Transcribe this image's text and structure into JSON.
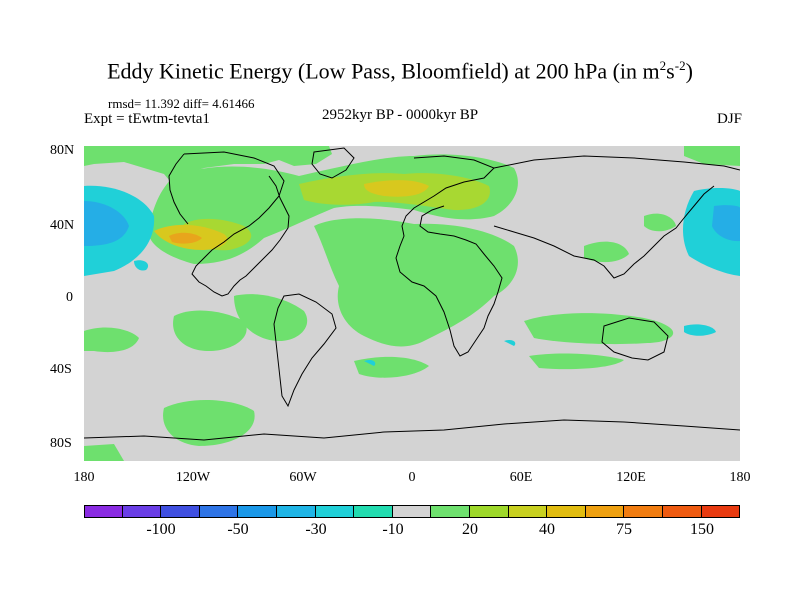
{
  "title": "Eddy Kinetic Energy (Low Pass, Bloomfield) at 200 hPa (in m",
  "title_unit_m_exp": "2",
  "title_unit_s": "s",
  "title_unit_s_exp": "-2",
  "title_close": ")",
  "stats": "rmsd= 11.392 diff= 4.61466",
  "experiment": "Expt = tEwtm-tevta1",
  "period": "2952kyr BP - 0000kyr BP",
  "season": "DJF",
  "y_axis": {
    "labels": [
      "80N",
      "40N",
      "0",
      "40S",
      "80S"
    ]
  },
  "x_axis": {
    "labels": [
      "180",
      "120W",
      "60W",
      "0",
      "60E",
      "120E",
      "180"
    ]
  },
  "colorbar": {
    "colors": [
      "#8a2be2",
      "#6a3ee6",
      "#3f4fe0",
      "#2e74e6",
      "#1a98e8",
      "#1fb5e6",
      "#20d0d8",
      "#22dcb0",
      "#d3d3d3",
      "#6ee06e",
      "#9ed82a",
      "#c8d020",
      "#e1bc10",
      "#eea010",
      "#f07c10",
      "#ee5a10",
      "#e83a10"
    ],
    "labels": [
      "-100",
      "-50",
      "-30",
      "-10",
      "20",
      "40",
      "75",
      "150"
    ]
  },
  "map_colors": {
    "background": "#d3d3d3",
    "green": "#6ee06e",
    "yellowgreen": "#a8d832",
    "yellow": "#d8c81e",
    "orange": "#e8a51c",
    "cyan": "#20d0d8",
    "blue": "#25aee6",
    "coast": "#000000"
  }
}
